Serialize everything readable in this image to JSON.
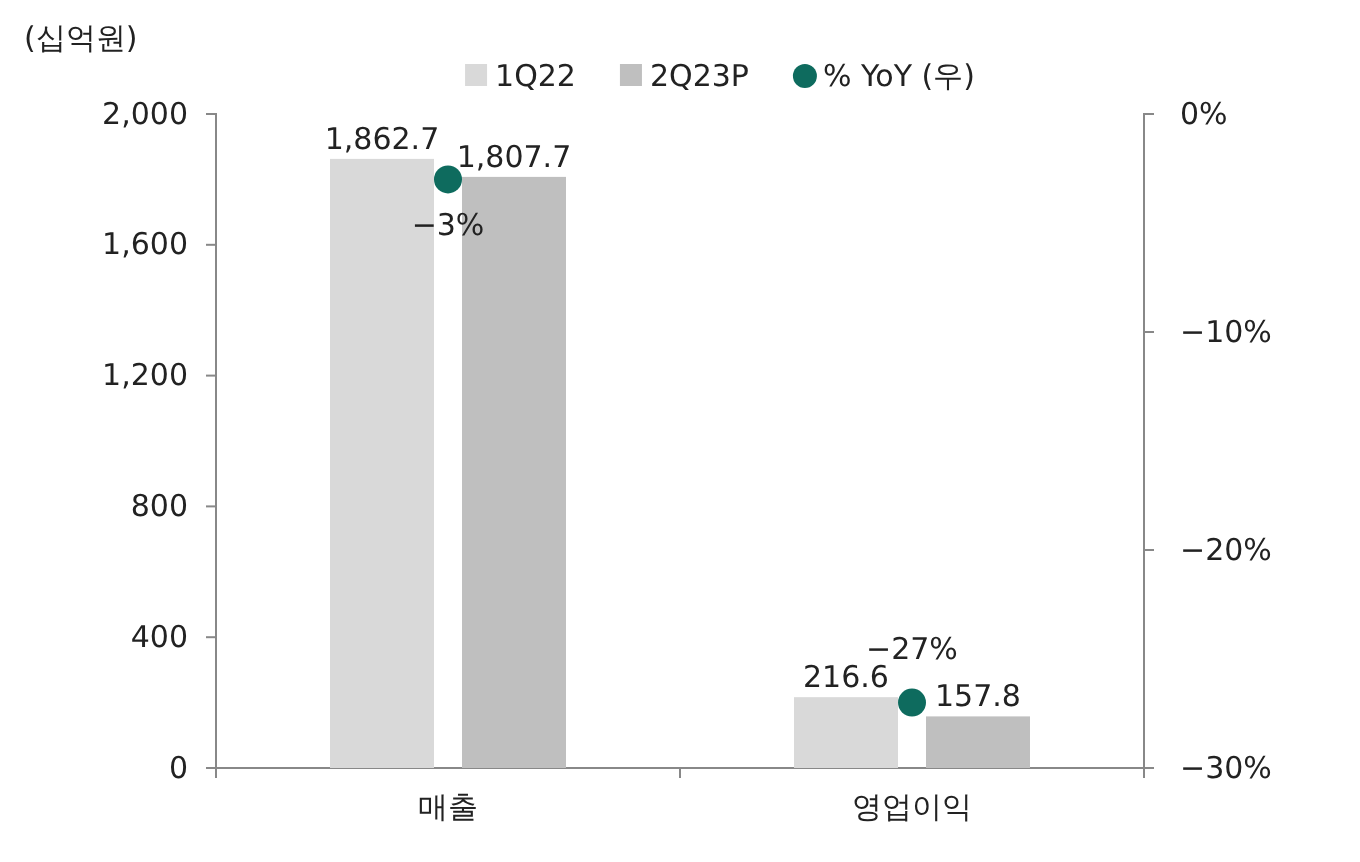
{
  "chart_data": {
    "type": "bar",
    "ylabel": "(십억원)",
    "categories": [
      "매출",
      "영업이익"
    ],
    "ylim": [
      0,
      2000
    ],
    "yticks": [
      0,
      {
        "value": 400,
        "label": "400"
      },
      {
        "value": 800,
        "label": "800"
      },
      {
        "value": 1200,
        "label": "1,200"
      },
      {
        "value": 1600,
        "label": "1,600"
      },
      {
        "value": 2000,
        "label": "2,000"
      }
    ],
    "y2lim": [
      -30,
      0
    ],
    "y2ticks": [
      {
        "value": -30,
        "label": "−30%"
      },
      {
        "value": -20,
        "label": "−20%"
      },
      {
        "value": -10,
        "label": "−10%"
      },
      {
        "value": 0,
        "label": "0%"
      }
    ],
    "legend": "top",
    "grid": false,
    "series": [
      {
        "name": "1Q22",
        "color": "#d9d9d9",
        "values": [
          1862.7,
          216.6
        ],
        "value_labels": [
          "1,862.7",
          "216.6"
        ]
      },
      {
        "name": "2Q23P",
        "color": "#bfbfbf",
        "values": [
          1807.7,
          157.8
        ],
        "value_labels": [
          "1,807.7",
          "157.8"
        ]
      },
      {
        "name": "% YoY (우)",
        "type": "scatter",
        "axis": "y2",
        "marker": "circle",
        "color": "#0e6b5e",
        "values": [
          -3,
          -27
        ],
        "value_labels": [
          "−3%",
          "−27%"
        ]
      }
    ]
  }
}
